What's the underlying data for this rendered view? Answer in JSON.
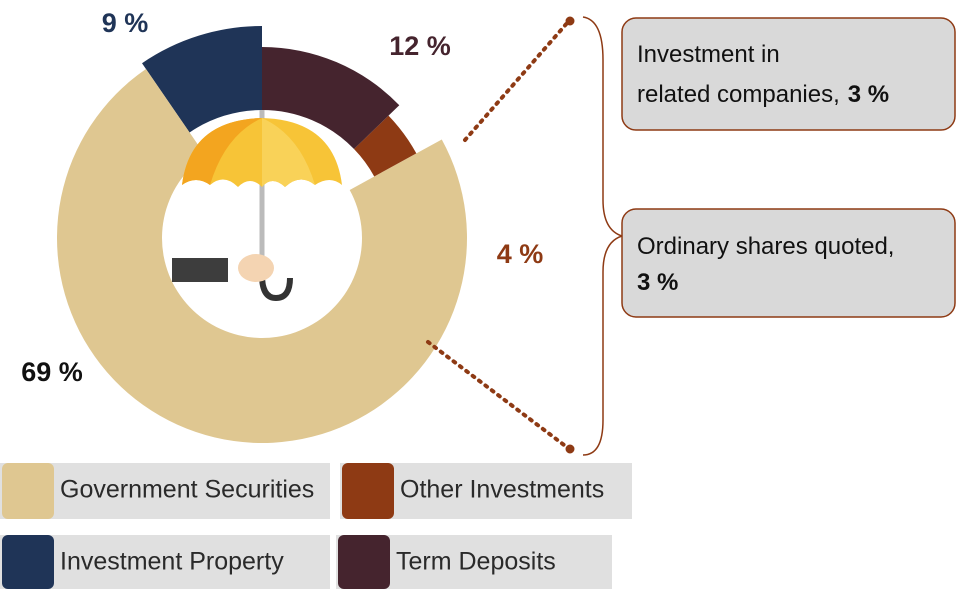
{
  "chart_data": {
    "type": "donut",
    "categories": [
      "Term Deposits",
      "Other Investments",
      "Government Securities",
      "Investment Property"
    ],
    "values": [
      12,
      4,
      69,
      9
    ],
    "value_labels": [
      "12 %",
      "4 %",
      "69 %",
      "9 %"
    ],
    "colors": [
      "#45242e",
      "#8e3a14",
      "#dfc791",
      "#1f3457"
    ],
    "callouts": [
      {
        "label": "Investment in related companies,",
        "value": 3,
        "value_label": "3 %"
      },
      {
        "label": "Ordinary shares quoted,",
        "value": 3,
        "value_label": "3 %"
      }
    ]
  }
}
